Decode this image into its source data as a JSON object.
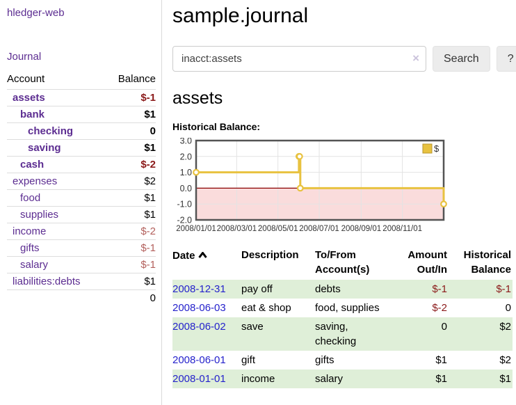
{
  "app": {
    "brand": "hledger-web",
    "nav_journal": "Journal"
  },
  "sidebar": {
    "accounts": {
      "col_account": "Account",
      "col_balance": "Balance",
      "rows": [
        {
          "name": "assets",
          "balance": "$-1"
        },
        {
          "name": "bank",
          "balance": "$1"
        },
        {
          "name": "checking",
          "balance": "0"
        },
        {
          "name": "saving",
          "balance": "$1"
        },
        {
          "name": "cash",
          "balance": "$-2"
        },
        {
          "name": "expenses",
          "balance": "$2"
        },
        {
          "name": "food",
          "balance": "$1"
        },
        {
          "name": "supplies",
          "balance": "$1"
        },
        {
          "name": "income",
          "balance": "$-2"
        },
        {
          "name": "gifts",
          "balance": "$-1"
        },
        {
          "name": "salary",
          "balance": "$-1"
        },
        {
          "name": "liabilities:debts",
          "balance": "$1"
        }
      ],
      "total": "0"
    }
  },
  "header": {
    "title": "sample.journal"
  },
  "search": {
    "value": "inacct:assets",
    "clear_icon": "×",
    "button_label": "Search",
    "help_label": "?"
  },
  "account_page": {
    "heading": "assets",
    "chart_title": "Historical Balance:"
  },
  "chart_data": {
    "type": "line",
    "step": true,
    "title": "Historical Balance",
    "legend": "$",
    "legend_position": "top-right",
    "grid": true,
    "ylim": [
      -2,
      3
    ],
    "y_ticks": [
      3,
      2,
      1,
      0,
      -1,
      -2
    ],
    "x_ticks": [
      {
        "label": "2008/01/01",
        "x": 0.0
      },
      {
        "label": "2008/03/01",
        "x": 0.1639
      },
      {
        "label": "2008/05/01",
        "x": 0.3306
      },
      {
        "label": "2008/07/01",
        "x": 0.4973
      },
      {
        "label": "2008/09/01",
        "x": 0.6667
      },
      {
        "label": "2008/11/01",
        "x": 0.8333
      }
    ],
    "series": [
      {
        "name": "$",
        "color": "#e8c240",
        "points": [
          {
            "date": "2008-01-01",
            "x": 0.0,
            "y": 1
          },
          {
            "date": "2008-06-01",
            "x": 0.4153,
            "y": 2
          },
          {
            "date": "2008-06-02",
            "x": 0.418,
            "y": 2
          },
          {
            "date": "2008-06-03",
            "x": 0.4208,
            "y": 0
          },
          {
            "date": "2008-12-31",
            "x": 1.0,
            "y": -1
          }
        ]
      }
    ],
    "negative_region_color": "#fadcdc",
    "zero_line_color": "#8b0000",
    "border_color": "#545454",
    "gridline_color": "#e3e3e3"
  },
  "register": {
    "columns": {
      "date": "Date",
      "description": "Description",
      "accounts": "To/From Account(s)",
      "amount": "Amount Out/In",
      "balance": "Historical Balance"
    },
    "rows": [
      {
        "date": "2008-12-31",
        "description": "pay off",
        "accounts": "debts",
        "amount": "$-1",
        "balance": "$-1"
      },
      {
        "date": "2008-06-03",
        "description": "eat & shop",
        "accounts": "food, supplies",
        "amount": "$-2",
        "balance": "0"
      },
      {
        "date": "2008-06-02",
        "description": "save",
        "accounts": "saving, checking",
        "amount": "0",
        "balance": "$2"
      },
      {
        "date": "2008-06-01",
        "description": "gift",
        "accounts": "gifts",
        "amount": "$1",
        "balance": "$2"
      },
      {
        "date": "2008-01-01",
        "description": "income",
        "accounts": "salary",
        "amount": "$1",
        "balance": "$1"
      }
    ]
  }
}
